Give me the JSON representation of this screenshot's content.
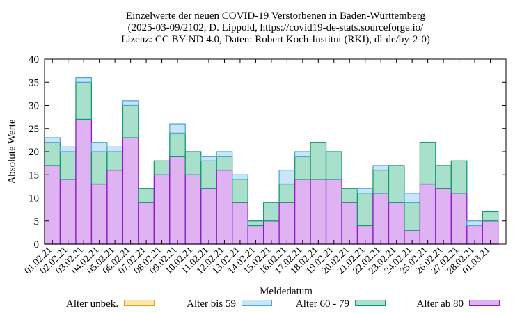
{
  "title": {
    "line1": "Einzelwerte der neuen COVID-19 Verstorbenen in Baden-Württemberg",
    "line2": "(2025-03-09/2102, D. Lippold, https://covid19-de-stats.sourceforge.io/",
    "line3": "Lizenz: CC BY-ND 4.0, Daten: Robert Koch-Institut (RKI), dl-de/by-2-0)"
  },
  "chart_data": {
    "type": "bar",
    "stacked": true,
    "xlabel": "Meldedatum",
    "ylabel": "Absolute Werte",
    "ylim": [
      0,
      40
    ],
    "yticks": [
      0,
      5,
      10,
      15,
      20,
      25,
      30,
      35,
      40
    ],
    "grid": false,
    "legend_position": "bottom",
    "categories": [
      "01.02.21",
      "02.02.21",
      "03.02.21",
      "04.02.21",
      "05.02.21",
      "06.02.21",
      "07.02.21",
      "08.02.21",
      "09.02.21",
      "10.02.21",
      "11.02.21",
      "12.02.21",
      "13.02.21",
      "14.02.21",
      "15.02.21",
      "16.02.21",
      "17.02.21",
      "18.02.21",
      "19.02.21",
      "20.02.21",
      "21.02.21",
      "22.02.21",
      "23.02.21",
      "24.02.21",
      "25.02.21",
      "26.02.21",
      "27.02.21",
      "28.02.21",
      "01.03.21"
    ],
    "series": [
      {
        "name": "Alter ab 80",
        "fill": "#dfb3f2",
        "stroke": "#8e1bc4",
        "values": [
          17,
          14,
          27,
          13,
          16,
          23,
          9,
          15,
          19,
          15,
          12,
          16,
          9,
          4,
          5,
          9,
          14,
          14,
          14,
          9,
          4,
          11,
          9,
          3,
          13,
          12,
          11,
          4,
          5
        ]
      },
      {
        "name": "Alter 60 - 79",
        "fill": "#a9e0cc",
        "stroke": "#159a6e",
        "values": [
          5,
          6,
          8,
          7,
          4,
          7,
          3,
          3,
          5,
          5,
          6,
          3,
          5,
          1,
          4,
          4,
          5,
          8,
          6,
          3,
          7,
          5,
          8,
          6,
          9,
          5,
          7,
          0,
          2
        ]
      },
      {
        "name": "Alter bis 59",
        "fill": "#c8e6f7",
        "stroke": "#4fa9d6",
        "values": [
          1,
          1,
          1,
          2,
          1,
          1,
          0,
          0,
          2,
          0,
          1,
          1,
          1,
          0,
          0,
          3,
          1,
          0,
          0,
          0,
          1,
          1,
          0,
          2,
          0,
          0,
          0,
          1,
          0
        ]
      },
      {
        "name": "Alter unbek.",
        "fill": "#fde6a6",
        "stroke": "#e0a020",
        "values": [
          0,
          0,
          0,
          0,
          0,
          0,
          0,
          0,
          0,
          0,
          0,
          0,
          0,
          0,
          0,
          0,
          0,
          0,
          0,
          0,
          0,
          0,
          0,
          0,
          0,
          0,
          0,
          0,
          0
        ]
      }
    ],
    "legend": [
      {
        "label": "Alter unbek.",
        "fill": "#fde6a6",
        "stroke": "#e0a020"
      },
      {
        "label": "Alter bis 59",
        "fill": "#c8e6f7",
        "stroke": "#4fa9d6"
      },
      {
        "label": "Alter 60 - 79",
        "fill": "#a9e0cc",
        "stroke": "#159a6e"
      },
      {
        "label": "Alter ab 80",
        "fill": "#dfb3f2",
        "stroke": "#8e1bc4"
      }
    ]
  }
}
